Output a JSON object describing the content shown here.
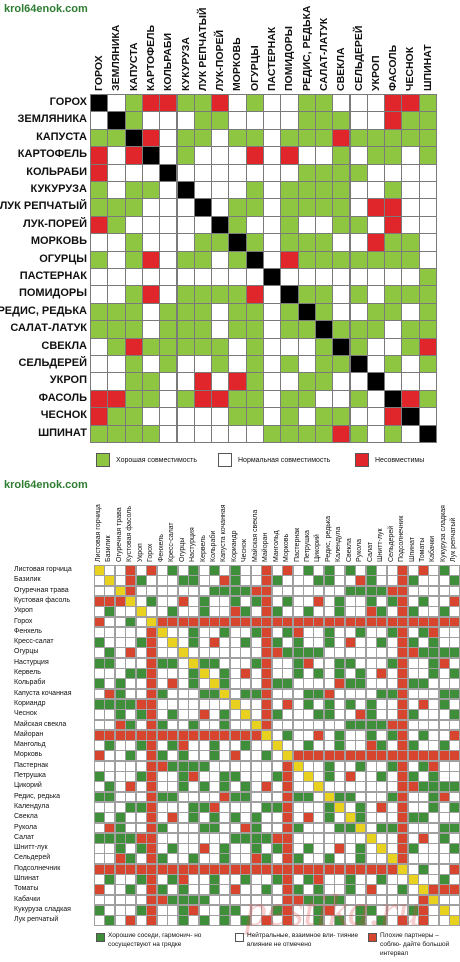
{
  "chart1": {
    "site": "krol64enok.com",
    "cols": [
      "ГОРОХ",
      "ЗЕМЛЯНИКА",
      "КАПУСТА",
      "КАРТОФЕЛЬ",
      "КОЛЬРАБИ",
      "КУКУРУЗА",
      "ЛУК РЕПЧАТЫЙ",
      "ЛУК-ПОРЕЙ",
      "МОРКОВЬ",
      "ОГУРЦЫ",
      "ПАСТЕРНАК",
      "ПОМИДОРЫ",
      "РЕДИС, РЕДЬКА",
      "САЛАТ-ЛАТУК",
      "СВЕКЛА",
      "СЕЛЬДЕРЕЙ",
      "УКРОП",
      "ФАСОЛЬ",
      "ЧЕСНОК",
      "ШПИНАТ"
    ],
    "rows": [
      "ГОРОХ",
      "ЗЕМЛЯНИКА",
      "КАПУСТА",
      "КАРТОФЕЛЬ",
      "КОЛЬРАБИ",
      "КУКУРУЗА",
      "ЛУК РЕПЧАТЫЙ",
      "ЛУК-ПОРЕЙ",
      "МОРКОВЬ",
      "ОГУРЦЫ",
      "ПАСТЕРНАК",
      "ПОМИДОРЫ",
      "РЕДИС, РЕДЬКА",
      "САЛАТ-ЛАТУК",
      "СВЕКЛА",
      "СЕЛЬДЕРЕЙ",
      "УКРОП",
      "ФАСОЛЬ",
      "ЧЕСНОК",
      "ШПИНАТ"
    ],
    "matrix": [
      "XWGRRGGRWGWWGGWWWRRG",
      "WXGWWWGGWWWWGGGWWRGG",
      "GGXRWGGWGGWGGGRGGGGG",
      "RWRXWGWWWRWRWWGWGGWG",
      "RWWWXWWWWWWWGGGGWWWW",
      "GWGGWXWWWGWGGGGWWGWW",
      "GGGWWWXWGGWGGGGWRRWW",
      "RGWWWWWXGWWGWWGGWRWW",
      "WWGWWWGGXGWGGGWWRGGW",
      "GWGRWGGWGXWRGGGGGGGW",
      "WWWWWWWWWWXWWWWWWWWG",
      "WWGRWGGGGRWXGGWGWGGG",
      "GGGWGGGWGGWGXGWWGGWG",
      "GGGWGGGWGGWGGXGGGWGG",
      "WGRGGGGGWGWWWGXGWWGR",
      "WWGWGWWGWGWGWGGXWGWG",
      "WWGGWWRWRGWWGGWWXWWW",
      "RRGGWGRRGGWGGWWGWXRG",
      "RGGWWWWWGGWGWGGWWRXW",
      "GGGGWWWWWWGGGGRGWGWX"
    ],
    "legend": {
      "good": "Хорошая совместимость",
      "normal": "Нормальная совместимость",
      "bad": "Несовместимы"
    },
    "colors": {
      "good": "#8ec641",
      "bad": "#e0262b",
      "normal": "#ffffff",
      "self": "#000000"
    }
  },
  "chart2": {
    "site": "krol64enok.com",
    "cols": [
      "Листовая горчица",
      "Базилик",
      "Огуречная трава",
      "Кустовая фасоль",
      "Укроп",
      "Горох",
      "Фенхель",
      "Кресс-салат",
      "Огурцы",
      "Настурция",
      "Кервель",
      "Кольраби",
      "Капуста кочанная",
      "Кориандр",
      "Чеснок",
      "Майская свекла",
      "Майоран",
      "Мангольд",
      "Морковь",
      "Пастернак",
      "Петрушка",
      "Цикорий",
      "Редис, редька",
      "Календула",
      "Свекла",
      "Рукола",
      "Салат",
      "Шнитт-лук",
      "Сельдерей",
      "Подсолнечник",
      "Шпинат",
      "Томаты",
      "Кабачки",
      "Кукуруза сладкая",
      "Лук репчатый"
    ],
    "rows": [
      "Листовая горчица",
      "Базилик",
      "Огуречная трава",
      "Кустовая фасоль",
      "Укроп",
      "Горох",
      "Фенхель",
      "Кресс-салат",
      "Огурцы",
      "Настурция",
      "Кервель",
      "Кольраби",
      "Капуста кочанная",
      "Кориандр",
      "Чеснок",
      "Майская свекла",
      "Майоран",
      "Мангольд",
      "Морковь",
      "Пастернак",
      "Петрушка",
      "Цикорий",
      "Редис, редька",
      "Календула",
      "Свекла",
      "Рукола",
      "Салат",
      "Шнитт-лук",
      "Сельдерей",
      "Подсолнечник",
      "Шпинат",
      "Томаты",
      "Кабачки",
      "Кукуруза сладкая",
      "Лук репчатый"
    ],
    "legend": {
      "good": "Хорошие соседи, гармонич- но сосуществуют на грядке",
      "neutral": "Нейтральные, взаимное вли- тияние влияние не отмечено",
      "bad": "Плохие партнеры – соблю- дайте большой интервал"
    },
    "colors": {
      "good": "#3f8f3a",
      "bad": "#d7452f",
      "neutral": "#ffffff",
      "self": "#e8d21f"
    },
    "watermark": "pestika.ru"
  }
}
